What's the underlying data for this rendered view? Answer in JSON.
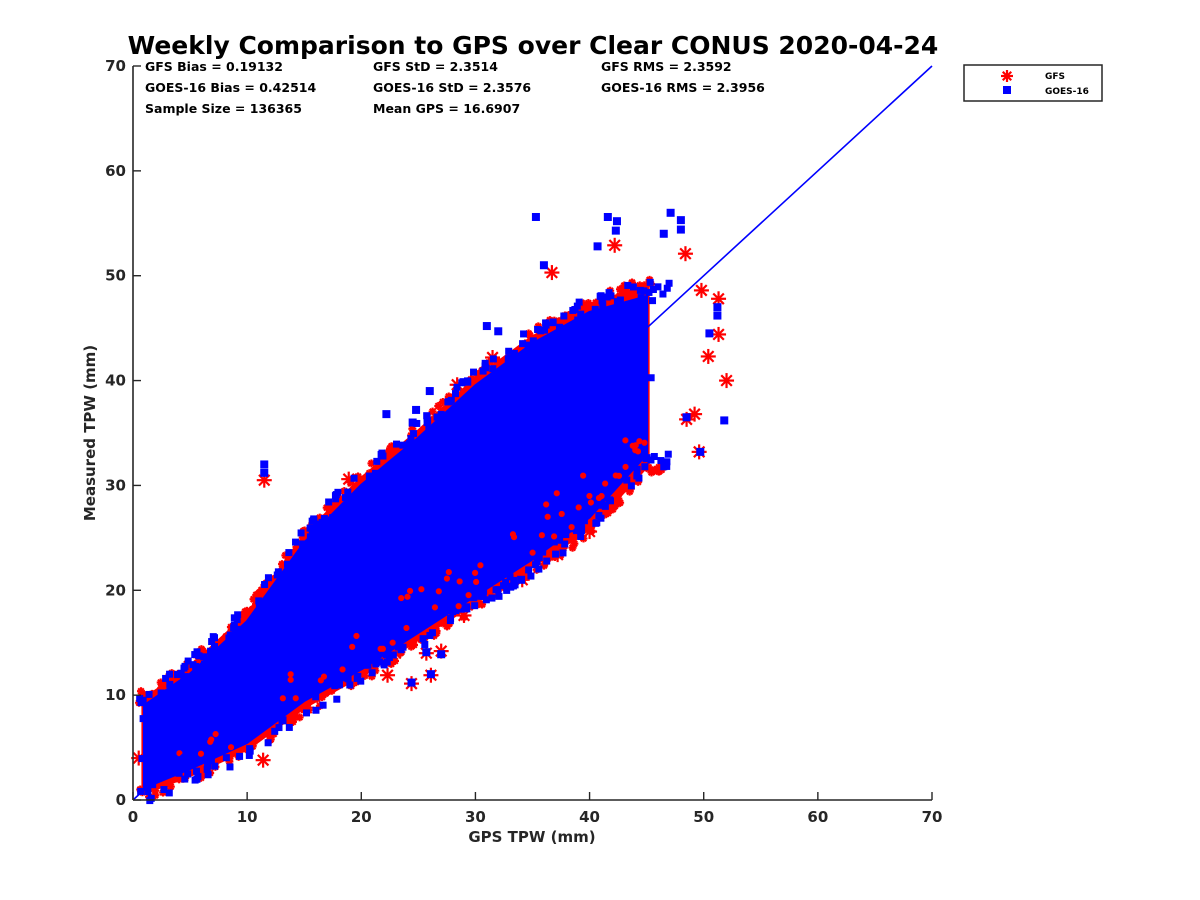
{
  "chart_data": {
    "type": "scatter",
    "title": "Weekly Comparison to GPS over Clear CONUS 2020-04-24",
    "xlabel": "GPS TPW (mm)",
    "ylabel": "Measured TPW (mm)",
    "xlim": [
      0,
      70
    ],
    "ylim": [
      0,
      70
    ],
    "xticks": [
      "0",
      "10",
      "20",
      "30",
      "40",
      "50",
      "60",
      "70"
    ],
    "yticks": [
      "0",
      "10",
      "20",
      "30",
      "40",
      "50",
      "60",
      "70"
    ],
    "grid": false,
    "legend_position": "top-right, outside plot",
    "stats": [
      "GFS Bias = 0.19132",
      "GFS StD = 2.3514",
      "GFS RMS = 2.3592",
      "GOES-16 Bias = 0.42514",
      "GOES-16 StD = 2.3576",
      "GOES-16 RMS = 2.3956",
      "Sample Size = 136365",
      "Mean GPS = 16.6907"
    ],
    "reference_line": {
      "label": "",
      "x": [
        0,
        70
      ],
      "y": [
        0,
        70
      ],
      "color": "#0000ff"
    },
    "series": [
      {
        "name": "GFS",
        "marker": "asterisk",
        "color": "#ff0000",
        "density_band": [
          {
            "x": 1,
            "y_low": 0.8,
            "y_high": 9.5
          },
          {
            "x": 5,
            "y_low": 2.5,
            "y_high": 12.5
          },
          {
            "x": 10,
            "y_low": 5.0,
            "y_high": 17.5
          },
          {
            "x": 15,
            "y_low": 9.0,
            "y_high": 25.0
          },
          {
            "x": 20,
            "y_low": 12.0,
            "y_high": 30.5
          },
          {
            "x": 25,
            "y_low": 15.5,
            "y_high": 35.0
          },
          {
            "x": 30,
            "y_low": 19.0,
            "y_high": 40.0
          },
          {
            "x": 35,
            "y_low": 22.5,
            "y_high": 44.0
          },
          {
            "x": 40,
            "y_low": 26.0,
            "y_high": 47.0
          },
          {
            "x": 45,
            "y_low": 32.0,
            "y_high": 49.0
          }
        ],
        "outliers": [
          {
            "x": 11.5,
            "y": 30.5
          },
          {
            "x": 11.3,
            "y": 19.3
          },
          {
            "x": 11.4,
            "y": 3.8
          },
          {
            "x": 18.9,
            "y": 30.6
          },
          {
            "x": 28.4,
            "y": 39.6
          },
          {
            "x": 31.5,
            "y": 42.2
          },
          {
            "x": 36.7,
            "y": 50.3
          },
          {
            "x": 42.2,
            "y": 52.9
          },
          {
            "x": 48.4,
            "y": 52.1
          },
          {
            "x": 49.8,
            "y": 48.6
          },
          {
            "x": 51.3,
            "y": 47.8
          },
          {
            "x": 51.3,
            "y": 44.4
          },
          {
            "x": 50.4,
            "y": 42.3
          },
          {
            "x": 52.0,
            "y": 40.0
          },
          {
            "x": 49.2,
            "y": 36.8
          },
          {
            "x": 48.5,
            "y": 36.3
          },
          {
            "x": 49.6,
            "y": 33.2
          },
          {
            "x": 40.0,
            "y": 25.6
          },
          {
            "x": 38.2,
            "y": 26.8
          },
          {
            "x": 37.2,
            "y": 23.4
          },
          {
            "x": 34.1,
            "y": 21.0
          },
          {
            "x": 29.5,
            "y": 19.8
          },
          {
            "x": 29.3,
            "y": 18.6
          },
          {
            "x": 29.0,
            "y": 17.6
          },
          {
            "x": 25.7,
            "y": 14.0
          },
          {
            "x": 26.1,
            "y": 11.9
          },
          {
            "x": 24.4,
            "y": 11.1
          },
          {
            "x": 22.3,
            "y": 11.9
          },
          {
            "x": 19.8,
            "y": 12.2
          },
          {
            "x": 15.2,
            "y": 8.8
          },
          {
            "x": 1.8,
            "y": 2.3
          },
          {
            "x": 0.5,
            "y": 4.0
          },
          {
            "x": 23.0,
            "y": 14.0
          },
          {
            "x": 27.0,
            "y": 14.2
          }
        ]
      },
      {
        "name": "GOES-16",
        "marker": "square",
        "color": "#0000ff",
        "density_band": [
          {
            "x": 1,
            "y_low": 1.2,
            "y_high": 9.0
          },
          {
            "x": 5,
            "y_low": 3.0,
            "y_high": 12.0
          },
          {
            "x": 10,
            "y_low": 5.5,
            "y_high": 17.0
          },
          {
            "x": 15,
            "y_low": 9.5,
            "y_high": 24.5
          },
          {
            "x": 20,
            "y_low": 12.5,
            "y_high": 30.0
          },
          {
            "x": 25,
            "y_low": 16.0,
            "y_high": 34.5
          },
          {
            "x": 30,
            "y_low": 19.5,
            "y_high": 39.5
          },
          {
            "x": 35,
            "y_low": 23.0,
            "y_high": 43.5
          },
          {
            "x": 40,
            "y_low": 27.0,
            "y_high": 46.5
          },
          {
            "x": 45,
            "y_low": 33.0,
            "y_high": 48.0
          }
        ],
        "outliers": [
          {
            "x": 11.5,
            "y": 32.0
          },
          {
            "x": 11.5,
            "y": 31.2
          },
          {
            "x": 22.2,
            "y": 36.8
          },
          {
            "x": 24.5,
            "y": 36.0
          },
          {
            "x": 24.8,
            "y": 37.2
          },
          {
            "x": 26.0,
            "y": 39.0
          },
          {
            "x": 31.0,
            "y": 45.2
          },
          {
            "x": 32.0,
            "y": 44.7
          },
          {
            "x": 35.3,
            "y": 55.6
          },
          {
            "x": 36.0,
            "y": 51.0
          },
          {
            "x": 40.7,
            "y": 52.8
          },
          {
            "x": 41.6,
            "y": 55.6
          },
          {
            "x": 42.4,
            "y": 55.2
          },
          {
            "x": 42.3,
            "y": 54.3
          },
          {
            "x": 47.1,
            "y": 56.0
          },
          {
            "x": 48.0,
            "y": 55.3
          },
          {
            "x": 48.0,
            "y": 54.4
          },
          {
            "x": 46.5,
            "y": 54.0
          },
          {
            "x": 51.2,
            "y": 47.0
          },
          {
            "x": 51.2,
            "y": 46.2
          },
          {
            "x": 51.8,
            "y": 36.2
          },
          {
            "x": 49.7,
            "y": 33.2
          },
          {
            "x": 45.0,
            "y": 32.6
          },
          {
            "x": 34.0,
            "y": 21.0
          },
          {
            "x": 29.8,
            "y": 19.6
          },
          {
            "x": 24.4,
            "y": 11.2
          },
          {
            "x": 26.1,
            "y": 12.0
          },
          {
            "x": 25.7,
            "y": 14.1
          },
          {
            "x": 27.0,
            "y": 13.9
          },
          {
            "x": 13.1,
            "y": 7.6
          },
          {
            "x": 48.5,
            "y": 36.5
          },
          {
            "x": 50.5,
            "y": 44.5
          }
        ]
      }
    ]
  }
}
